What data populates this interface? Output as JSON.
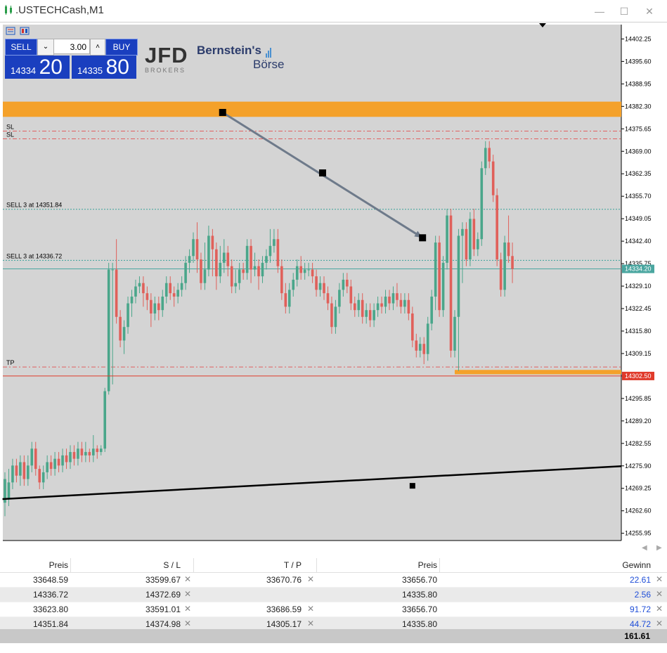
{
  "window": {
    "title": ".USTECHCash,M1",
    "controls": [
      "—",
      "☐",
      "✕"
    ]
  },
  "trade_panel": {
    "sell_label": "SELL",
    "buy_label": "BUY",
    "lot": "3.00",
    "sell_price_small": "14334",
    "sell_price_big": "20",
    "buy_price_small": "14335",
    "buy_price_big": "80"
  },
  "logos": {
    "jfd_main": "JFD",
    "jfd_sub": "BROKERS",
    "bern_line1": "Bernstein's",
    "bern_line2": "Börse"
  },
  "chart_data": {
    "type": "candlestick",
    "symbol": ".USTECHCash",
    "timeframe": "M1",
    "y_ticks": [
      "14402.25",
      "14395.60",
      "14388.95",
      "14382.30",
      "14375.65",
      "14369.00",
      "14362.35",
      "14355.70",
      "14349.05",
      "14342.40",
      "14335.75",
      "14329.10",
      "14322.45",
      "14315.80",
      "14309.15",
      "14302.50",
      "14295.85",
      "14289.20",
      "14282.55",
      "14275.90",
      "14269.25",
      "14262.60",
      "14255.95"
    ],
    "ylim": [
      14253.8,
      14406.5
    ],
    "bid_label": "14334.20",
    "tp_price_label": "14302.50",
    "level_lines": [
      {
        "label": "SL",
        "price": 14374.98,
        "style": "dashdot",
        "color": "#e06060"
      },
      {
        "label": "SL",
        "price": 14372.69,
        "style": "dashdot",
        "color": "#e06060"
      },
      {
        "label": "SELL 3 at 14351.84",
        "price": 14351.84,
        "style": "dotted",
        "color": "#3aa29a"
      },
      {
        "label": "SELL 3 at 14336.72",
        "price": 14336.72,
        "style": "dotted",
        "color": "#3aa29a"
      },
      {
        "label": "TP",
        "price": 14305.17,
        "style": "dashdot",
        "color": "#e06060"
      }
    ],
    "candles": [
      [
        14265.0,
        14272.0,
        14261.0,
        14274.0
      ],
      [
        14266.0,
        14271.0,
        14264.0,
        14275.0
      ],
      [
        14271.0,
        14276.0,
        14269.0,
        14278.0
      ],
      [
        14276.0,
        14273.0,
        14271.0,
        14278.0
      ],
      [
        14273.0,
        14277.0,
        14270.0,
        14279.0
      ],
      [
        14277.0,
        14272.0,
        14270.0,
        14279.0
      ],
      [
        14272.0,
        14276.0,
        14270.0,
        14279.0
      ],
      [
        14276.0,
        14281.0,
        14274.0,
        14283.0
      ],
      [
        14281.0,
        14275.0,
        14273.0,
        14283.0
      ],
      [
        14275.0,
        14271.0,
        14269.0,
        14276.0
      ],
      [
        14271.0,
        14274.0,
        14269.0,
        14276.0
      ],
      [
        14274.0,
        14277.0,
        14272.0,
        14279.0
      ],
      [
        14277.0,
        14275.0,
        14273.0,
        14279.0
      ],
      [
        14275.0,
        14278.0,
        14273.0,
        14280.0
      ],
      [
        14278.0,
        14276.0,
        14274.0,
        14280.0
      ],
      [
        14276.0,
        14279.0,
        14274.0,
        14281.0
      ],
      [
        14279.0,
        14277.0,
        14275.0,
        14281.0
      ],
      [
        14277.0,
        14280.0,
        14275.0,
        14282.0
      ],
      [
        14280.0,
        14278.0,
        14276.0,
        14282.0
      ],
      [
        14278.0,
        14281.0,
        14276.0,
        14283.0
      ],
      [
        14281.0,
        14279.0,
        14277.0,
        14283.0
      ],
      [
        14279.0,
        14280.0,
        14277.0,
        14283.0
      ],
      [
        14280.0,
        14279.0,
        14277.0,
        14281.0
      ],
      [
        14279.0,
        14281.0,
        14277.0,
        14285.0
      ],
      [
        14281.0,
        14280.0,
        14278.0,
        14282.0
      ],
      [
        14280.0,
        14281.0,
        14279.0,
        14282.0
      ],
      [
        14281.0,
        14298.0,
        14280.0,
        14299.0
      ],
      [
        14298.0,
        14334.0,
        14297.0,
        14336.0
      ],
      [
        14334.0,
        14334.0,
        14300.0,
        14336.0
      ],
      [
        14334.0,
        14320.0,
        14318.0,
        14343.0
      ],
      [
        14320.0,
        14313.0,
        14311.0,
        14322.0
      ],
      [
        14313.0,
        14317.0,
        14309.0,
        14319.0
      ],
      [
        14317.0,
        14324.0,
        14315.0,
        14326.0
      ],
      [
        14324.0,
        14326.0,
        14320.0,
        14328.0
      ],
      [
        14326.0,
        14329.0,
        14324.0,
        14331.0
      ],
      [
        14329.0,
        14330.0,
        14327.0,
        14332.0
      ],
      [
        14330.0,
        14327.0,
        14323.0,
        14332.0
      ],
      [
        14327.0,
        14325.0,
        14322.0,
        14329.0
      ],
      [
        14325.0,
        14321.0,
        14317.0,
        14327.0
      ],
      [
        14321.0,
        14324.0,
        14319.0,
        14326.0
      ],
      [
        14324.0,
        14322.0,
        14319.0,
        14326.0
      ],
      [
        14322.0,
        14326.0,
        14320.0,
        14328.0
      ],
      [
        14326.0,
        14330.0,
        14324.0,
        14332.0
      ],
      [
        14330.0,
        14327.0,
        14325.0,
        14332.0
      ],
      [
        14327.0,
        14326.0,
        14323.0,
        14329.0
      ],
      [
        14326.0,
        14328.0,
        14324.0,
        14330.0
      ],
      [
        14328.0,
        14330.0,
        14326.0,
        14332.0
      ],
      [
        14330.0,
        14336.0,
        14328.0,
        14338.0
      ],
      [
        14336.0,
        14338.0,
        14333.0,
        14340.0
      ],
      [
        14338.0,
        14343.0,
        14336.0,
        14345.0
      ],
      [
        14343.0,
        14337.0,
        14333.0,
        14348.0
      ],
      [
        14337.0,
        14330.0,
        14328.0,
        14339.0
      ],
      [
        14330.0,
        14334.0,
        14328.0,
        14342.0
      ],
      [
        14334.0,
        14344.0,
        14332.0,
        14347.0
      ],
      [
        14344.0,
        14340.0,
        14332.0,
        14346.0
      ],
      [
        14340.0,
        14332.0,
        14328.0,
        14342.0
      ],
      [
        14332.0,
        14336.0,
        14330.0,
        14341.0
      ],
      [
        14336.0,
        14339.0,
        14333.0,
        14343.0
      ],
      [
        14339.0,
        14335.0,
        14332.0,
        14341.0
      ],
      [
        14335.0,
        14329.0,
        14327.0,
        14337.0
      ],
      [
        14329.0,
        14330.0,
        14327.0,
        14334.0
      ],
      [
        14330.0,
        14334.0,
        14328.0,
        14336.0
      ],
      [
        14334.0,
        14333.0,
        14331.0,
        14336.0
      ],
      [
        14333.0,
        14341.0,
        14331.0,
        14343.0
      ],
      [
        14341.0,
        14334.0,
        14330.0,
        14343.0
      ],
      [
        14334.0,
        14335.0,
        14332.0,
        14339.0
      ],
      [
        14335.0,
        14332.0,
        14328.0,
        14337.0
      ],
      [
        14332.0,
        14336.0,
        14330.0,
        14338.0
      ],
      [
        14336.0,
        14338.0,
        14334.0,
        14340.0
      ],
      [
        14338.0,
        14341.0,
        14336.0,
        14346.0
      ],
      [
        14341.0,
        14343.0,
        14339.0,
        14346.0
      ],
      [
        14343.0,
        14335.0,
        14333.0,
        14346.0
      ],
      [
        14335.0,
        14327.0,
        14325.0,
        14337.0
      ],
      [
        14327.0,
        14323.0,
        14321.0,
        14330.0
      ],
      [
        14323.0,
        14328.0,
        14321.0,
        14330.0
      ],
      [
        14328.0,
        14331.0,
        14326.0,
        14333.0
      ],
      [
        14331.0,
        14335.0,
        14329.0,
        14337.0
      ],
      [
        14335.0,
        14333.0,
        14331.0,
        14338.0
      ],
      [
        14333.0,
        14334.0,
        14331.0,
        14336.0
      ],
      [
        14334.0,
        14334.0,
        14332.0,
        14336.0
      ],
      [
        14334.0,
        14332.0,
        14330.0,
        14336.0
      ],
      [
        14332.0,
        14328.0,
        14326.0,
        14334.0
      ],
      [
        14328.0,
        14330.0,
        14326.0,
        14332.0
      ],
      [
        14330.0,
        14327.0,
        14325.0,
        14332.0
      ],
      [
        14327.0,
        14324.0,
        14322.0,
        14329.0
      ],
      [
        14324.0,
        14317.0,
        14315.0,
        14326.0
      ],
      [
        14317.0,
        14323.0,
        14315.0,
        14325.0
      ],
      [
        14323.0,
        14328.0,
        14321.0,
        14330.0
      ],
      [
        14328.0,
        14331.0,
        14326.0,
        14333.0
      ],
      [
        14331.0,
        14329.0,
        14327.0,
        14333.0
      ],
      [
        14329.0,
        14324.0,
        14322.0,
        14331.0
      ],
      [
        14324.0,
        14322.0,
        14320.0,
        14326.0
      ],
      [
        14322.0,
        14325.0,
        14320.0,
        14327.0
      ],
      [
        14325.0,
        14320.0,
        14318.0,
        14327.0
      ],
      [
        14320.0,
        14322.0,
        14318.0,
        14324.0
      ],
      [
        14322.0,
        14319.0,
        14317.0,
        14324.0
      ],
      [
        14319.0,
        14322.0,
        14317.0,
        14324.0
      ],
      [
        14322.0,
        14324.0,
        14320.0,
        14326.0
      ],
      [
        14324.0,
        14323.0,
        14321.0,
        14326.0
      ],
      [
        14323.0,
        14326.0,
        14321.0,
        14328.0
      ],
      [
        14326.0,
        14324.0,
        14322.0,
        14328.0
      ],
      [
        14324.0,
        14327.0,
        14322.0,
        14329.0
      ],
      [
        14327.0,
        14325.0,
        14323.0,
        14330.0
      ],
      [
        14325.0,
        14323.0,
        14321.0,
        14327.0
      ],
      [
        14323.0,
        14325.0,
        14321.0,
        14327.0
      ],
      [
        14325.0,
        14321.0,
        14319.0,
        14327.0
      ],
      [
        14321.0,
        14313.0,
        14311.0,
        14323.0
      ],
      [
        14313.0,
        14310.0,
        14308.0,
        14315.0
      ],
      [
        14310.0,
        14312.0,
        14308.0,
        14314.0
      ],
      [
        14312.0,
        14309.0,
        14306.0,
        14314.0
      ],
      [
        14309.0,
        14318.0,
        14307.0,
        14320.0
      ],
      [
        14318.0,
        14326.0,
        14316.0,
        14328.0
      ],
      [
        14326.0,
        14342.0,
        14322.0,
        14344.0
      ],
      [
        14342.0,
        14322.0,
        14320.0,
        14344.0
      ],
      [
        14322.0,
        14336.0,
        14320.0,
        14338.0
      ],
      [
        14336.0,
        14350.0,
        14334.0,
        14352.0
      ],
      [
        14350.0,
        14310.0,
        14308.0,
        14352.0
      ],
      [
        14310.0,
        14320.0,
        14308.0,
        14322.0
      ],
      [
        14320.0,
        14344.0,
        14304.0,
        14346.0
      ],
      [
        14344.0,
        14346.0,
        14330.0,
        14348.0
      ],
      [
        14346.0,
        14337.0,
        14335.0,
        14348.0
      ],
      [
        14337.0,
        14349.0,
        14335.0,
        14351.0
      ],
      [
        14349.0,
        14340.0,
        14338.0,
        14352.0
      ],
      [
        14340.0,
        14343.0,
        14338.0,
        14345.0
      ],
      [
        14343.0,
        14364.0,
        14341.0,
        14366.0
      ],
      [
        14364.0,
        14370.0,
        14362.0,
        14372.0
      ],
      [
        14370.0,
        14366.0,
        14364.0,
        14372.0
      ],
      [
        14366.0,
        14356.0,
        14354.0,
        14368.0
      ],
      [
        14356.0,
        14337.0,
        14335.0,
        14358.0
      ],
      [
        14337.0,
        14328.0,
        14326.0,
        14339.0
      ],
      [
        14328.0,
        14342.0,
        14326.0,
        14344.0
      ],
      [
        14342.0,
        14338.0,
        14336.0,
        14350.0
      ],
      [
        14338.0,
        14334.2,
        14330.0,
        14342.0
      ]
    ],
    "drawings": [
      {
        "type": "zone",
        "from": 14379.2,
        "to": 14383.7,
        "color": "#f4a12a"
      },
      {
        "type": "zone_partial",
        "from": 14303.0,
        "to": 14304.3,
        "color": "#f4a12a"
      },
      {
        "type": "hline",
        "price": 14302.5,
        "color": "#e03a2a"
      },
      {
        "type": "trendline",
        "p1": [
          14,
          14266.5
        ],
        "p2": [
          106,
          14270.0
        ],
        "p3": [
          159,
          14275.8
        ],
        "color": "#000000"
      },
      {
        "type": "arrow",
        "p1": [
          42,
          14380.5
        ],
        "p2": [
          68,
          14362.6
        ],
        "p3": [
          94,
          14343.4
        ],
        "color": "#6e7a8a"
      }
    ]
  },
  "positions": {
    "headers": [
      "Preis",
      "S / L",
      "T / P",
      "Preis",
      "Gewinn"
    ],
    "rows": [
      {
        "price": "33648.59",
        "sl": "33599.67",
        "tp": "33670.76",
        "cur": "33656.70",
        "gain": "22.61"
      },
      {
        "price": "14336.72",
        "sl": "14372.69",
        "tp": "",
        "cur": "14335.80",
        "gain": "2.56"
      },
      {
        "price": "33623.80",
        "sl": "33591.01",
        "tp": "33686.59",
        "cur": "33656.70",
        "gain": "91.72"
      },
      {
        "price": "14351.84",
        "sl": "14374.98",
        "tp": "14305.17",
        "cur": "14335.80",
        "gain": "44.72"
      }
    ],
    "total": "161.61"
  }
}
